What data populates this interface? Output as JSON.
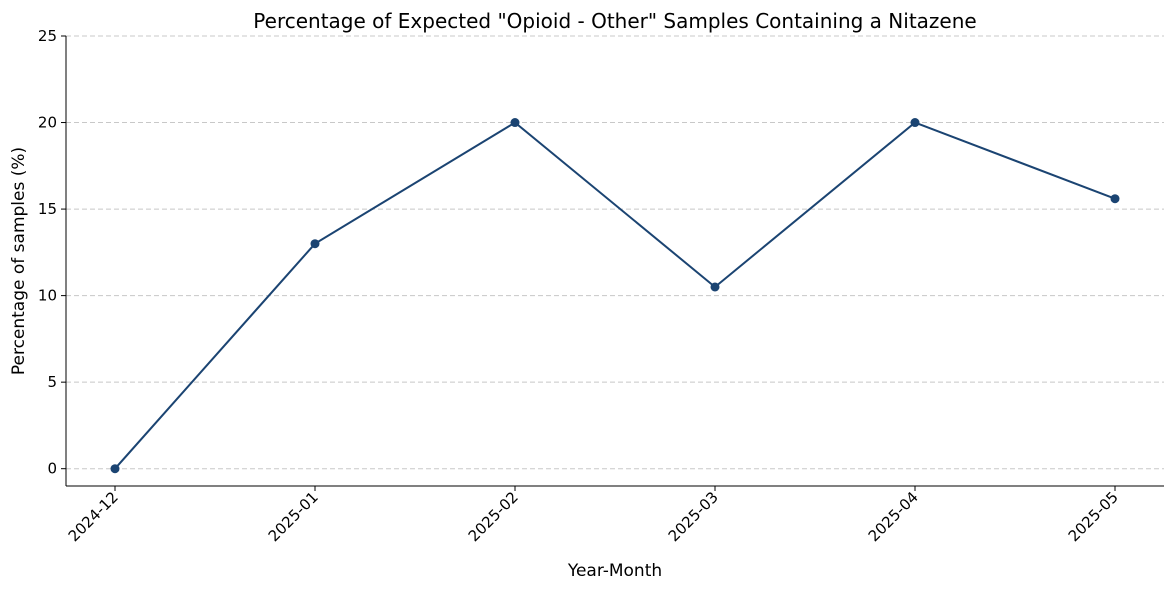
{
  "chart_data": {
    "type": "line",
    "title": "Percentage of Expected \"Opioid - Other\" Samples Containing a Nitazene",
    "xlabel": "Year-Month",
    "ylabel": "Percentage of samples (%)",
    "categories": [
      "2024-12",
      "2025-01",
      "2025-02",
      "2025-03",
      "2025-04",
      "2025-05"
    ],
    "series": [
      {
        "values": [
          0,
          13.0,
          20.0,
          10.5,
          20.0,
          15.6
        ],
        "color": "#1b4472"
      }
    ],
    "ylim": [
      -1,
      25
    ],
    "yticks": [
      0,
      5,
      10,
      15,
      20,
      25
    ],
    "grid": "horizontal-dashed",
    "legend": "none"
  }
}
